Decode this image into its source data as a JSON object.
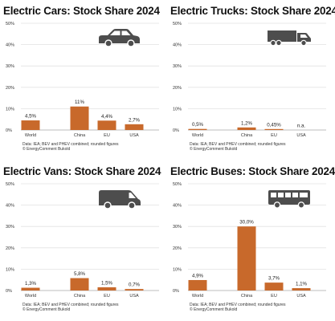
{
  "style": {
    "bar_color": "#c8692b",
    "grid_color": "#e2e2e2",
    "axis_color": "#bdbdbd",
    "icon_color": "#4d4d4d"
  },
  "charts": [
    {
      "title": "Electric Cars: Stock Share 2024",
      "icon": "car-icon",
      "source_lines": [
        "Data: IEA; BEV and PHEV combined; rounded figures",
        "© EnergyComment Bukold"
      ],
      "chart_data": {
        "type": "bar",
        "title": "Electric Cars: Stock Share 2024",
        "categories": [
          "World",
          "China",
          "EU",
          "USA"
        ],
        "values": [
          4.5,
          11,
          4.4,
          2.7
        ],
        "value_labels": [
          "4,5%",
          "11%",
          "4,4%",
          "2,7%"
        ],
        "ylim": [
          0,
          50
        ],
        "yticks": [
          "0%",
          "10%",
          "20%",
          "30%",
          "40%",
          "50%"
        ],
        "xlabel": "",
        "ylabel": "",
        "grid": true,
        "legend": "none"
      }
    },
    {
      "title": "Electric Trucks: Stock Share 2024",
      "icon": "truck-icon",
      "source_lines": [
        "Data: IEA; BEV and PHEV combined; rounded figures",
        "© EnergyComment Bukold"
      ],
      "chart_data": {
        "type": "bar",
        "title": "Electric Trucks: Stock Share 2024",
        "categories": [
          "World",
          "China",
          "EU",
          "USA"
        ],
        "values": [
          0.5,
          1.2,
          0.45,
          null
        ],
        "value_labels": [
          "0,5%",
          "1,2%",
          "0,45%",
          "n.a."
        ],
        "ylim": [
          0,
          50
        ],
        "yticks": [
          "0%",
          "10%",
          "20%",
          "30%",
          "40%",
          "50%"
        ],
        "xlabel": "",
        "ylabel": "",
        "grid": true,
        "legend": "none"
      }
    },
    {
      "title": "Electric Vans: Stock Share 2024",
      "icon": "van-icon",
      "source_lines": [
        "Data: IEA; BEV and PHEV combined; rounded figures",
        "© EnergyComment Bukold"
      ],
      "chart_data": {
        "type": "bar",
        "title": "Electric Vans: Stock Share 2024",
        "categories": [
          "World",
          "China",
          "EU",
          "USA"
        ],
        "values": [
          1.3,
          5.8,
          1.5,
          0.7
        ],
        "value_labels": [
          "1,3%",
          "5,8%",
          "1,5%",
          "0,7%"
        ],
        "ylim": [
          0,
          50
        ],
        "yticks": [
          "0%",
          "10%",
          "20%",
          "30%",
          "40%",
          "50%"
        ],
        "xlabel": "",
        "ylabel": "",
        "grid": true,
        "legend": "none"
      }
    },
    {
      "title": "Electric Buses: Stock Share 2024",
      "icon": "bus-icon",
      "source_lines": [
        "Data: IEA; BEV and PHEV combined; rounded figures",
        "© EnergyComment Bukold"
      ],
      "chart_data": {
        "type": "bar",
        "title": "Electric Buses: Stock Share 2024",
        "categories": [
          "World",
          "China",
          "EU",
          "USA"
        ],
        "values": [
          4.9,
          30.0,
          3.7,
          1.1
        ],
        "value_labels": [
          "4,9%",
          "30,0%",
          "3,7%",
          "1,1%"
        ],
        "ylim": [
          0,
          50
        ],
        "yticks": [
          "0%",
          "10%",
          "20%",
          "30%",
          "40%",
          "50%"
        ],
        "xlabel": "",
        "ylabel": "",
        "grid": true,
        "legend": "none"
      }
    }
  ]
}
